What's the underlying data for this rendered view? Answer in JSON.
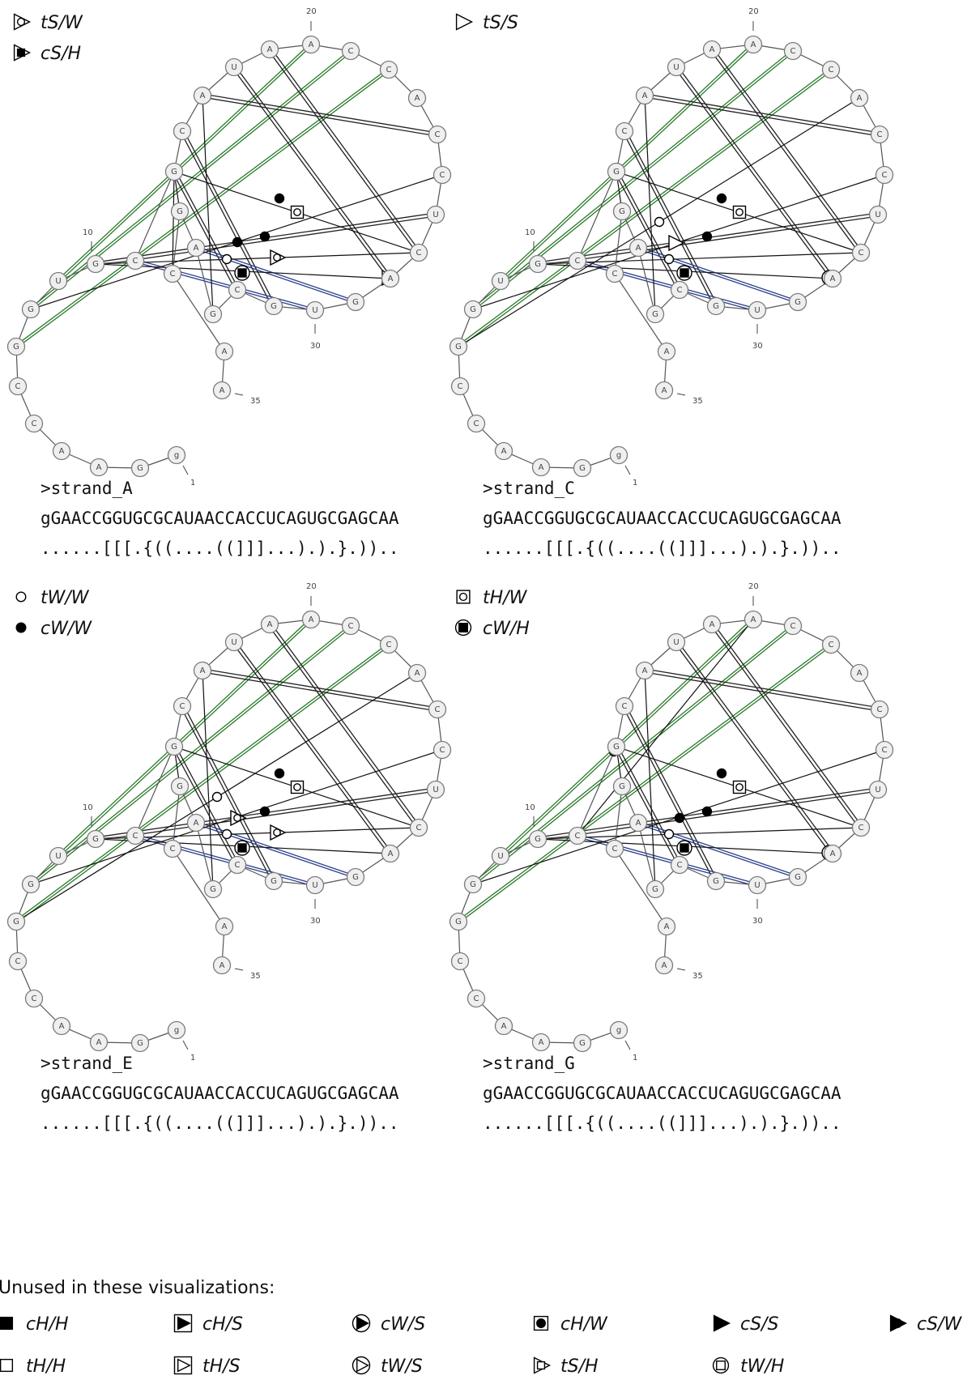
{
  "panels": [
    {
      "id": "A",
      "name": ">strand_A",
      "sequence": "gGAACCGGUGCGCAUAACCACCUCAGUGCGAGCAA",
      "structure": "......[[[.{((....((]]]...).).}.))..",
      "legend": [
        {
          "symbol": "tS-W",
          "label": "tS/W"
        },
        {
          "symbol": "cS-H",
          "label": "cS/H"
        }
      ]
    },
    {
      "id": "C",
      "name": ">strand_C",
      "sequence": "gGAACCGGUGCGCAUAACCACCUCAGUGCGAGCAA",
      "structure": "......[[[.{((....((]]]...).).}.))..",
      "legend": [
        {
          "symbol": "tS-S",
          "label": "tS/S"
        }
      ]
    },
    {
      "id": "E",
      "name": ">strand_E",
      "sequence": "gGAACCGGUGCGCAUAACCACCUCAGUGCGAGCAA",
      "structure": "......[[[.{((....((]]]...).).}.))..",
      "legend": [
        {
          "symbol": "tW-W",
          "label": "tW/W"
        },
        {
          "symbol": "cW-W",
          "label": "cW/W"
        }
      ]
    },
    {
      "id": "G",
      "name": ">strand_G",
      "sequence": "gGAACCGGUGCGCAUAACCACCUCAGUGCGAGCAA",
      "structure": "......[[[.{((....((]]]...).).}.))..",
      "legend": [
        {
          "symbol": "tH-W",
          "label": "tH/W"
        },
        {
          "symbol": "cW-H",
          "label": "cW/H"
        }
      ]
    }
  ],
  "position_labels": [
    "1",
    "10",
    "20",
    "30",
    "35"
  ],
  "unused": {
    "title": "Unused in these visualizations:",
    "items": [
      {
        "symbol": "cH-H",
        "label": "cH/H"
      },
      {
        "symbol": "cH-S",
        "label": "cH/S"
      },
      {
        "symbol": "cW-S",
        "label": "cW/S"
      },
      {
        "symbol": "cH-W",
        "label": "cH/W"
      },
      {
        "symbol": "cS-S",
        "label": "cS/S"
      },
      {
        "symbol": "cS-W",
        "label": "cS/W"
      },
      {
        "symbol": "tH-H",
        "label": "tH/H"
      },
      {
        "symbol": "tH-S",
        "label": "tH/S"
      },
      {
        "symbol": "tW-S",
        "label": "tW/S"
      },
      {
        "symbol": "tS-H",
        "label": "tS/H"
      },
      {
        "symbol": "tW-H",
        "label": "tW/H"
      }
    ]
  },
  "colors": {
    "canonical_pair": "#2a7a2a",
    "wobble_pair": "#2b3f8a",
    "tertiary": "#111111",
    "nucleotide_fill": "#efefef"
  }
}
